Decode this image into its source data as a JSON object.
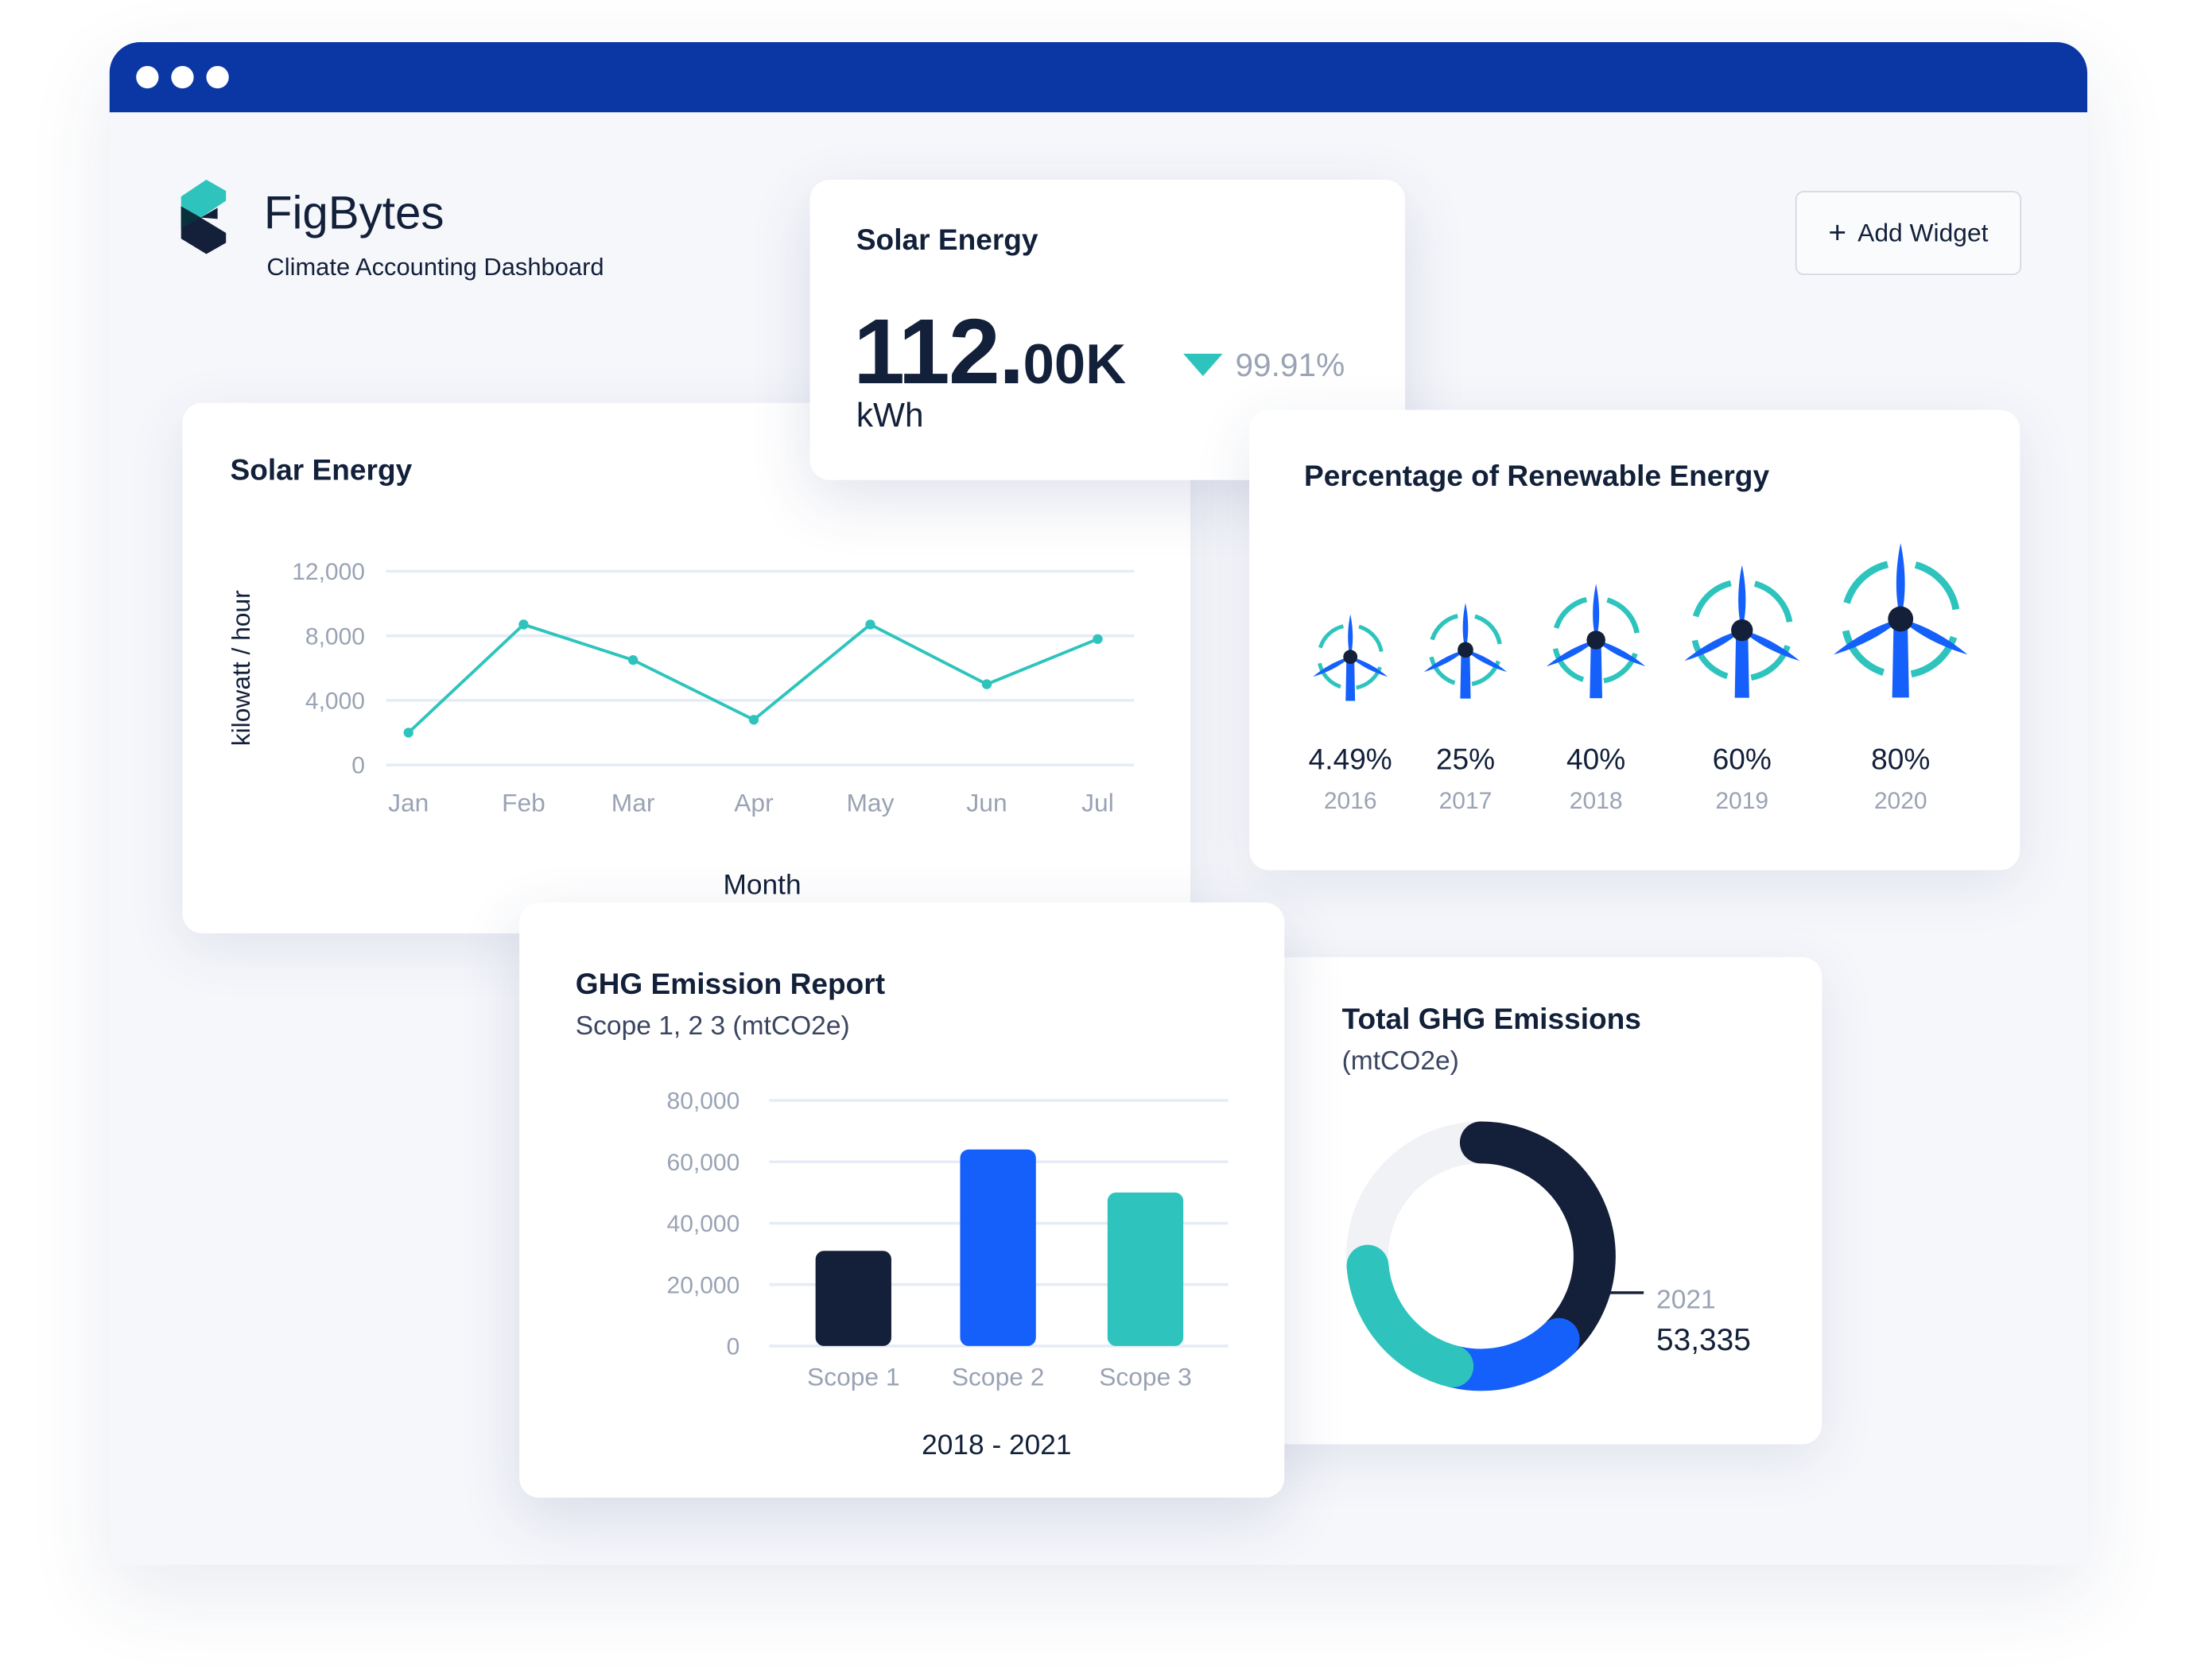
{
  "app": {
    "name": "FigBytes",
    "subtitle": "Climate Accounting Dashboard",
    "add_widget_label": "Add Widget",
    "window_dots": 3
  },
  "colors": {
    "titlebar": "#0a37a3",
    "navy": "#142039",
    "blue": "#1560fb",
    "teal": "#2ec4bd",
    "muted": "#9aa3b4"
  },
  "solar_kpi": {
    "title": "Solar Energy",
    "value_main": "112.",
    "value_rest": "00K",
    "unit": "kWh",
    "delta": "99.91%",
    "delta_direction": "down"
  },
  "solar_chart": {
    "title": "Solar Energy",
    "chart_data": {
      "type": "line",
      "categories": [
        "Jan",
        "Feb",
        "Mar",
        "Apr",
        "May",
        "Jun",
        "Jul"
      ],
      "values": [
        2000,
        8700,
        6500,
        2800,
        8700,
        5000,
        7800
      ],
      "ylabel": "kilowatt / hour",
      "xlabel": "Month",
      "yticks": [
        "0",
        "4,000",
        "8,000",
        "12,000"
      ],
      "ylim": [
        0,
        12000
      ],
      "grid": true,
      "color": "#2ec4bd"
    }
  },
  "renewable": {
    "title": "Percentage of Renewable Energy",
    "items": [
      {
        "pct": "4.49%",
        "year": "2016"
      },
      {
        "pct": "25%",
        "year": "2017"
      },
      {
        "pct": "40%",
        "year": "2018"
      },
      {
        "pct": "60%",
        "year": "2019"
      },
      {
        "pct": "80%",
        "year": "2020"
      }
    ]
  },
  "ghg_report": {
    "title": "GHG Emission Report",
    "subtitle": "Scope 1, 2 3 (mtCO2e)",
    "chart_data": {
      "type": "bar",
      "categories": [
        "Scope 1",
        "Scope 2",
        "Scope 3"
      ],
      "values": [
        31000,
        64000,
        50000
      ],
      "colors": [
        "#142039",
        "#1560fb",
        "#2ec4bd"
      ],
      "yticks": [
        "0",
        "20,000",
        "40,000",
        "60,000",
        "80,000"
      ],
      "ylim": [
        0,
        80000
      ],
      "xlabel": "2018 - 2021",
      "grid": true
    }
  },
  "total_ghg": {
    "title": "Total GHG Emissions",
    "subtitle": "(mtCO2e)",
    "year": "2021",
    "value": "53,335",
    "chart_data": {
      "type": "pie",
      "segments": [
        {
          "share": 0.38,
          "color": "#142039"
        },
        {
          "share": 0.16,
          "color": "#1560fb"
        },
        {
          "share": 0.2,
          "color": "#2ec4bd"
        },
        {
          "share": 0.26,
          "color": "#f1f2f6"
        }
      ]
    }
  }
}
